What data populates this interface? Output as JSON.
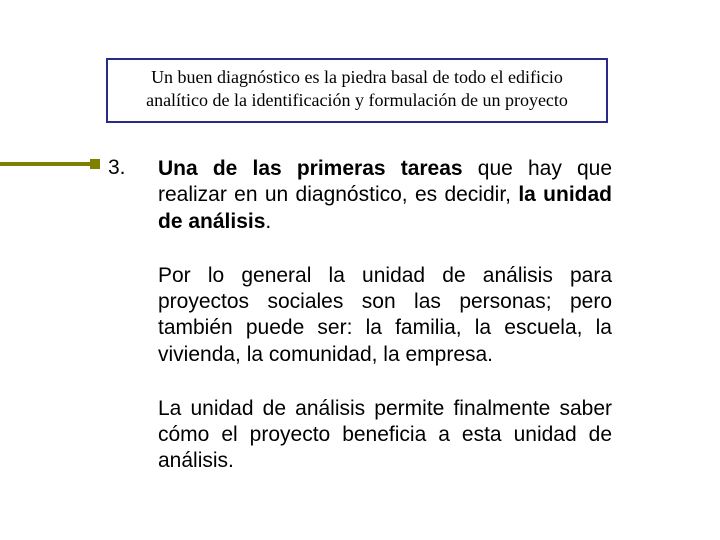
{
  "colors": {
    "accent": "#808000",
    "box_border": "#2a2a88",
    "text": "#000000",
    "background": "#ffffff"
  },
  "typography": {
    "header_font": "Times New Roman",
    "body_font": "Verdana",
    "header_fontsize_pt": 14,
    "body_fontsize_pt": 16
  },
  "header": {
    "text": "Un buen diagnóstico es la piedra basal de todo el edificio analítico de la identificación y formulación de un proyecto"
  },
  "item": {
    "number": "3.",
    "p1_bold1": "Una de las primeras tareas",
    "p1_mid": " que hay que realizar en un diagnóstico, es decidir, ",
    "p1_bold2": "la unidad de análisis",
    "p1_end": ".",
    "p2": "Por lo general la unidad de análisis para proyectos sociales son las personas; pero también puede ser: la familia, la escuela, la vivienda, la comunidad, la empresa.",
    "p3": "La unidad de análisis permite finalmente saber cómo el proyecto beneficia a esta unidad de análisis."
  }
}
